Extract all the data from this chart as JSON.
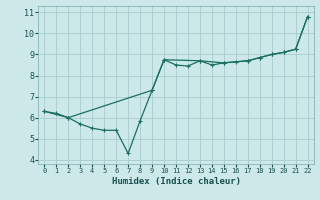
{
  "xlabel": "Humidex (Indice chaleur)",
  "bg_color": "#cce8e8",
  "grid_color": "#aacccc",
  "line_color": "#1a6e62",
  "xlim": [
    -0.5,
    22.5
  ],
  "ylim": [
    3.8,
    11.3
  ],
  "xticks": [
    0,
    1,
    2,
    3,
    4,
    5,
    6,
    7,
    8,
    9,
    10,
    11,
    12,
    13,
    14,
    15,
    16,
    17,
    18,
    19,
    20,
    21,
    22
  ],
  "yticks": [
    4,
    5,
    6,
    7,
    8,
    9,
    10,
    11
  ],
  "data_x": [
    0,
    1,
    2,
    3,
    4,
    5,
    6,
    7,
    8,
    9,
    10,
    11,
    12,
    13,
    14,
    15,
    16,
    17,
    18,
    19,
    20,
    21,
    22
  ],
  "data_y": [
    6.3,
    6.2,
    6.0,
    5.7,
    5.5,
    5.4,
    5.4,
    4.3,
    5.85,
    7.3,
    8.75,
    8.5,
    8.45,
    8.7,
    8.5,
    8.6,
    8.65,
    8.7,
    8.85,
    9.0,
    9.1,
    9.25,
    10.8
  ],
  "trend_x": [
    0,
    2,
    9,
    10,
    13,
    15,
    17,
    18,
    19,
    20,
    21,
    22
  ],
  "trend_y": [
    6.3,
    6.0,
    7.3,
    8.75,
    8.7,
    8.6,
    8.7,
    8.85,
    9.0,
    9.1,
    9.25,
    10.8
  ]
}
